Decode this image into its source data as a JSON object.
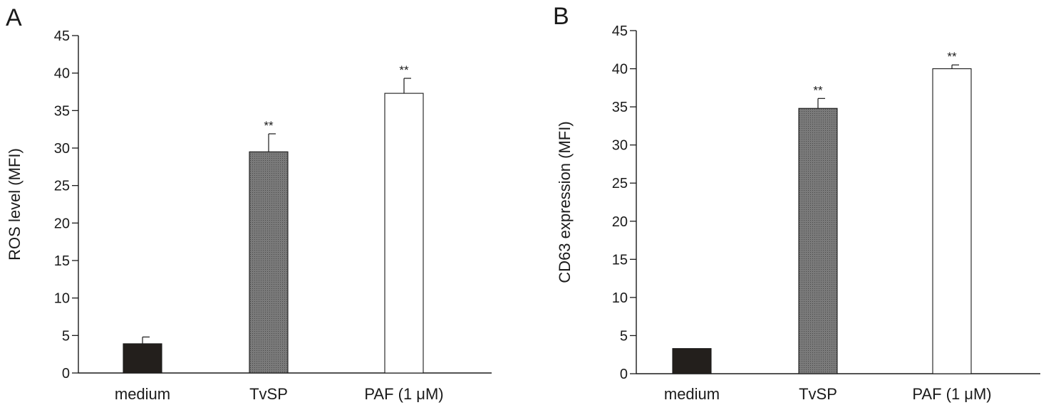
{
  "chart_data": [
    {
      "type": "bar",
      "panel": "A",
      "ylabel": "ROS level (MFI)",
      "xlabel": "",
      "ylim": [
        0,
        45
      ],
      "yticks": [
        0,
        5,
        10,
        15,
        20,
        25,
        30,
        35,
        40,
        45
      ],
      "categories": [
        "medium",
        "TvSP",
        "PAF (1 μM)"
      ],
      "values": [
        3.9,
        29.5,
        37.3
      ],
      "errors": [
        0.9,
        2.4,
        2.0
      ],
      "significance": [
        "",
        "**",
        "**"
      ],
      "colors": [
        "#231f1c",
        "#6e6e6e",
        "#ffffff"
      ]
    },
    {
      "type": "bar",
      "panel": "B",
      "ylabel": "CD63 expression (MFI)",
      "xlabel": "",
      "ylim": [
        0,
        45
      ],
      "yticks": [
        0,
        5,
        10,
        15,
        20,
        25,
        30,
        35,
        40,
        45
      ],
      "categories": [
        "medium",
        "TvSP",
        "PAF (1 μM)"
      ],
      "values": [
        3.3,
        34.8,
        40.0
      ],
      "errors": [
        0,
        1.3,
        0.5
      ],
      "significance": [
        "",
        "**",
        "**"
      ],
      "colors": [
        "#231f1c",
        "#6e6e6e",
        "#ffffff"
      ]
    }
  ]
}
